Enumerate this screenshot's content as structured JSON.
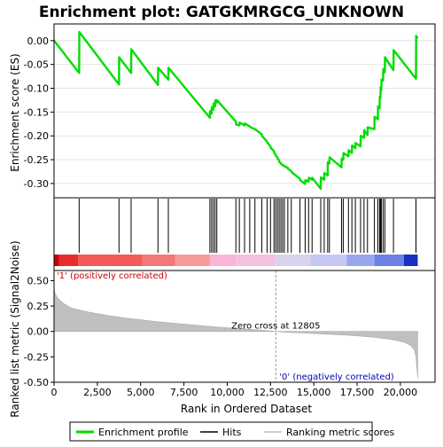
{
  "chart_data": {
    "type": "line",
    "title": "Enrichment plot: GATGKMRGCG_UNKNOWN",
    "xlabel": "Rank in Ordered Dataset",
    "es_panel": {
      "ylabel": "Enrichment score (ES)",
      "ylim": [
        -0.33,
        0.035
      ],
      "yticks": [
        0.0,
        -0.05,
        -0.1,
        -0.15,
        -0.2,
        -0.25,
        -0.3
      ],
      "ytick_labels": [
        "0.00",
        "-0.05",
        "-0.10",
        "-0.15",
        "-0.20",
        "-0.25",
        "-0.30"
      ],
      "grid": true,
      "line_color": "#00dd00",
      "series": [
        {
          "name": "Enrichment profile",
          "x": [
            0,
            1450,
            1460,
            3750,
            3760,
            4450,
            4460,
            6000,
            6010,
            6600,
            6610,
            9000,
            9010,
            9100,
            9110,
            9200,
            9210,
            9300,
            9310,
            9400,
            9410,
            10500,
            10510,
            10700,
            10710,
            11000,
            11010,
            11300,
            11310,
            11600,
            11610,
            12000,
            12010,
            12300,
            12310,
            12500,
            12510,
            12700,
            12710,
            12800,
            12810,
            12900,
            12910,
            13000,
            13010,
            13100,
            13110,
            13200,
            13210,
            13300,
            13310,
            13500,
            13510,
            13700,
            13710,
            14200,
            14210,
            14500,
            14510,
            14700,
            14710,
            14900,
            14910,
            15400,
            15410,
            15600,
            15610,
            15800,
            15810,
            15900,
            15910,
            16600,
            16610,
            16700,
            16710,
            17000,
            17010,
            17200,
            17210,
            17400,
            17410,
            17700,
            17710,
            17900,
            17910,
            18100,
            18110,
            18500,
            18510,
            18700,
            18710,
            18800,
            18810,
            18850,
            18860,
            18900,
            18910,
            19000,
            19010,
            19100,
            19110,
            19600,
            19610,
            20900,
            20910,
            21000
          ],
          "y": [
            0.0,
            -0.068,
            0.018,
            -0.092,
            -0.035,
            -0.068,
            -0.018,
            -0.093,
            -0.057,
            -0.082,
            -0.057,
            -0.162,
            -0.148,
            -0.153,
            -0.14,
            -0.145,
            -0.132,
            -0.138,
            -0.125,
            -0.13,
            -0.125,
            -0.17,
            -0.176,
            -0.178,
            -0.172,
            -0.178,
            -0.174,
            -0.18,
            -0.181,
            -0.186,
            -0.186,
            -0.197,
            -0.2,
            -0.212,
            -0.214,
            -0.222,
            -0.225,
            -0.232,
            -0.235,
            -0.24,
            -0.242,
            -0.245,
            -0.248,
            -0.251,
            -0.255,
            -0.257,
            -0.259,
            -0.261,
            -0.262,
            -0.263,
            -0.264,
            -0.267,
            -0.269,
            -0.274,
            -0.276,
            -0.29,
            -0.293,
            -0.301,
            -0.293,
            -0.296,
            -0.288,
            -0.292,
            -0.288,
            -0.311,
            -0.287,
            -0.292,
            -0.278,
            -0.283,
            -0.255,
            -0.258,
            -0.245,
            -0.266,
            -0.248,
            -0.25,
            -0.236,
            -0.243,
            -0.23,
            -0.236,
            -0.22,
            -0.226,
            -0.215,
            -0.222,
            -0.2,
            -0.204,
            -0.188,
            -0.198,
            -0.182,
            -0.186,
            -0.16,
            -0.165,
            -0.138,
            -0.142,
            -0.118,
            -0.12,
            -0.098,
            -0.104,
            -0.082,
            -0.084,
            -0.06,
            -0.066,
            -0.035,
            -0.062,
            -0.02,
            -0.08,
            0.01,
            0.005
          ]
        }
      ]
    },
    "hits_panel": {
      "legend_label": "Hits",
      "hits": [
        1450,
        3750,
        4450,
        6000,
        6600,
        9000,
        9100,
        9200,
        9300,
        9400,
        10500,
        10700,
        11000,
        11300,
        11600,
        12000,
        12300,
        12500,
        12700,
        12800,
        12900,
        13000,
        13100,
        13200,
        13300,
        13500,
        13700,
        14200,
        14500,
        14700,
        14900,
        15400,
        15600,
        15800,
        15900,
        16600,
        16700,
        17000,
        17200,
        17400,
        17700,
        17900,
        18100,
        18500,
        18700,
        18800,
        18850,
        18900,
        19000,
        19100,
        19600,
        20900
      ],
      "heatmap_segments": [
        {
          "x0": 0,
          "x1": 300,
          "color": "#cc0000"
        },
        {
          "x0": 300,
          "x1": 1400,
          "color": "#e82c2c"
        },
        {
          "x0": 1400,
          "x1": 5100,
          "color": "#f25a5a"
        },
        {
          "x0": 5100,
          "x1": 7000,
          "color": "#f47878"
        },
        {
          "x0": 7000,
          "x1": 9000,
          "color": "#f79a9a"
        },
        {
          "x0": 9000,
          "x1": 10500,
          "color": "#f8b5d6"
        },
        {
          "x0": 10500,
          "x1": 12800,
          "color": "#f3c0e2"
        },
        {
          "x0": 12800,
          "x1": 14800,
          "color": "#d8d2ee"
        },
        {
          "x0": 14800,
          "x1": 16900,
          "color": "#c4c8f2"
        },
        {
          "x0": 16900,
          "x1": 18500,
          "color": "#9aa6ec"
        },
        {
          "x0": 18500,
          "x1": 20200,
          "color": "#6c7fe4"
        },
        {
          "x0": 20200,
          "x1": 21000,
          "color": "#1a2fc4"
        }
      ]
    },
    "metric_panel": {
      "ylabel": "Ranked list metric (Signal2Noise)",
      "ylim": [
        -0.5,
        0.6
      ],
      "yticks": [
        0.5,
        0.25,
        0.0,
        -0.25,
        -0.5
      ],
      "ytick_labels": [
        "0.50",
        "0.25",
        "0.00",
        "-0.25",
        "-0.50"
      ],
      "fill_color": "#c0c0c0",
      "series": [
        {
          "name": "Ranking metric scores",
          "x": [
            0,
            50,
            200,
            500,
            1000,
            2000,
            3000,
            4000,
            5000,
            6000,
            7000,
            8000,
            9000,
            10000,
            11000,
            12000,
            12805,
            13500,
            14500,
            15500,
            16500,
            17500,
            18500,
            19200,
            19800,
            20300,
            20600,
            20800,
            20900,
            21000
          ],
          "y": [
            0.42,
            0.38,
            0.33,
            0.28,
            0.23,
            0.19,
            0.16,
            0.135,
            0.115,
            0.095,
            0.08,
            0.065,
            0.05,
            0.037,
            0.025,
            0.013,
            0.0,
            -0.008,
            -0.016,
            -0.024,
            -0.033,
            -0.043,
            -0.058,
            -0.072,
            -0.088,
            -0.11,
            -0.14,
            -0.18,
            -0.25,
            -0.46
          ]
        }
      ],
      "zero_cross_label": "Zero cross at 12805",
      "zero_cross_x": 12805,
      "pos_label": "'1' (positively correlated)",
      "neg_label": "'0' (negatively correlated)"
    },
    "xlim": [
      0,
      22000
    ],
    "xticks": [
      0,
      2500,
      5000,
      7500,
      10000,
      12500,
      15000,
      17500,
      20000
    ],
    "xtick_labels": [
      "0",
      "2,500",
      "5,000",
      "7,500",
      "10,000",
      "12,500",
      "15,000",
      "17,500",
      "20,000"
    ],
    "legend": [
      {
        "name": "Enrichment profile",
        "color": "#00dd00"
      },
      {
        "name": "Hits",
        "color": "#000000"
      },
      {
        "name": "Ranking metric scores",
        "color": "#c0c0c0"
      }
    ],
    "legend_placement": "bottom"
  }
}
